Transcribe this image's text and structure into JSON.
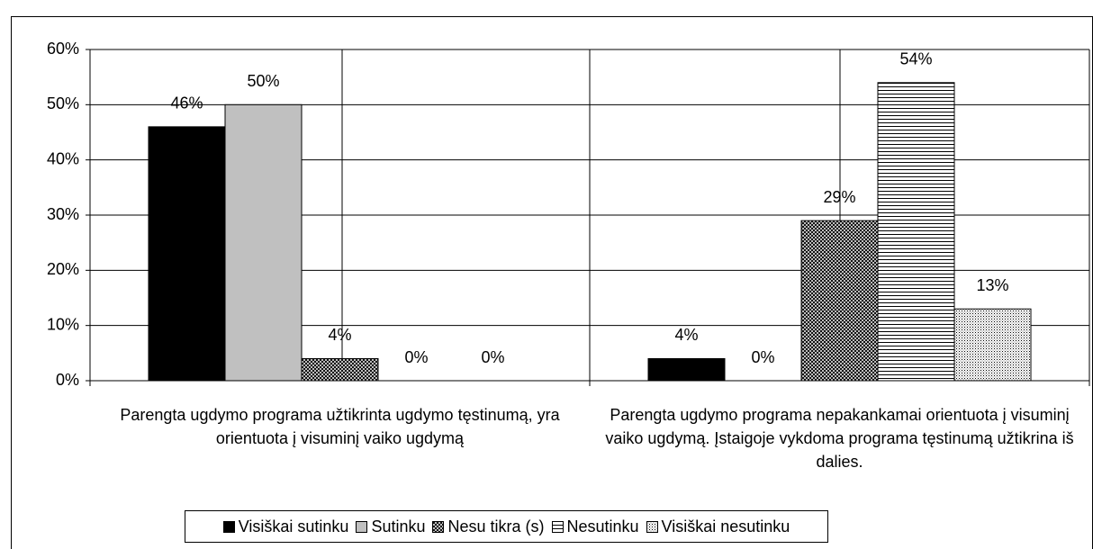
{
  "chart_data": {
    "type": "bar",
    "categories": [
      "Parengta ugdymo programa užtikrinta ugdymo tęstinumą, yra orientuota į visuminį vaiko ugdymą",
      "Parengta ugdymo programa nepakankamai orientuota į visuminį vaiko ugdymą. Įstaigoje vykdoma programa tęstinumą užtikrina iš dalies."
    ],
    "series": [
      {
        "name": "Visiškai sutinku",
        "color": "#000000",
        "pattern": "solid",
        "values": [
          46,
          4
        ],
        "value_labels": [
          "46%",
          "4%"
        ]
      },
      {
        "name": "Sutinku",
        "color": "#c0c0c0",
        "pattern": "solid",
        "values": [
          50,
          0
        ],
        "value_labels": [
          "50%",
          "0%"
        ]
      },
      {
        "name": "Nesu tikra (s)",
        "color": "#000000",
        "pattern": "crosshatch",
        "values": [
          4,
          29
        ],
        "value_labels": [
          "4%",
          "29%"
        ]
      },
      {
        "name": "Nesutinku",
        "color": "#000000",
        "pattern": "horizontal",
        "values": [
          0,
          54
        ],
        "value_labels": [
          "0%",
          "54%"
        ]
      },
      {
        "name": "Visiškai nesutinku",
        "color": "#000000",
        "pattern": "dotted",
        "values": [
          0,
          13
        ],
        "value_labels": [
          "0%",
          "13%"
        ]
      }
    ],
    "ylim": [
      0,
      60
    ],
    "yticks": [
      {
        "value": 0,
        "label": "0%"
      },
      {
        "value": 10,
        "label": "10%"
      },
      {
        "value": 20,
        "label": "20%"
      },
      {
        "value": 30,
        "label": "30%"
      },
      {
        "value": 40,
        "label": "40%"
      },
      {
        "value": 50,
        "label": "50%"
      },
      {
        "value": 60,
        "label": "60%"
      }
    ],
    "grid": true,
    "legend": "bottom"
  }
}
